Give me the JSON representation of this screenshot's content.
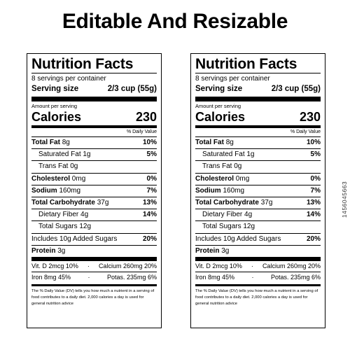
{
  "headline": "Editable And Resizable",
  "labels": [
    {
      "title": "Nutrition Facts",
      "servings": "8 servings per container",
      "serving_size_label": "Serving size",
      "serving_size_value": "2/3 cup (55g)",
      "amount_per_serving": "Amount per serving",
      "calories_label": "Calories",
      "calories_value": "230",
      "daily_value_header": "% Daily Value",
      "rows": [
        {
          "name": "Total Fat",
          "amount": "8g",
          "pct": "10%"
        },
        {
          "name": "Saturated Fat 1g",
          "pct": "5%"
        },
        {
          "name": "Trans Fat 0g",
          "pct": ""
        },
        {
          "name": "Cholesterol",
          "amount": "0mg",
          "pct": "0%"
        },
        {
          "name": "Sodium",
          "amount": "160mg",
          "pct": "7%"
        },
        {
          "name": "Total Carbohydrate",
          "amount": "37g",
          "pct": "13%"
        },
        {
          "name": "Dietary Fiber 4g",
          "pct": "14%"
        },
        {
          "name": "Total Sugars 12g",
          "pct": ""
        },
        {
          "name": "Includes 10g Added Sugars",
          "pct": "20%"
        },
        {
          "name": "Protein",
          "amount": "3g",
          "pct": ""
        }
      ],
      "vitamins": [
        {
          "left": "Vit. D 2mcg 10%",
          "sep": "·",
          "right": "Calcium 260mg 20%"
        },
        {
          "left": "Iron 8mg 45%",
          "sep": "·",
          "right": "Potas. 235mg 6%"
        }
      ],
      "footnote": "The % Daily Value (DV) tells you how much a nutrient in a serving of food contributes to a daily diet. 2,000 calories a day is used for general nutrition advice"
    },
    {
      "title": "Nutrition Facts",
      "servings": "8 servings per container",
      "serving_size_label": "Serving size",
      "serving_size_value": "2/3 cup (55g)",
      "amount_per_serving": "Amount per serving",
      "calories_label": "Calories",
      "calories_value": "230",
      "daily_value_header": "% Daily Value",
      "rows": [
        {
          "name": "Total Fat",
          "amount": "8g",
          "pct": "10%"
        },
        {
          "name": "Saturated Fat 1g",
          "pct": "5%"
        },
        {
          "name": "Trans Fat 0g",
          "pct": ""
        },
        {
          "name": "Cholesterol",
          "amount": "0mg",
          "pct": "0%"
        },
        {
          "name": "Sodium",
          "amount": "160mg",
          "pct": "7%"
        },
        {
          "name": "Total Carbohydrate",
          "amount": "37g",
          "pct": "13%"
        },
        {
          "name": "Dietary Fiber 4g",
          "pct": "14%"
        },
        {
          "name": "Total Sugars 12g",
          "pct": ""
        },
        {
          "name": "Includes 10g Added Sugars",
          "pct": "20%"
        },
        {
          "name": "Protein",
          "amount": "3g",
          "pct": ""
        }
      ],
      "vitamins": [
        {
          "left": "Vit. D 2mcg 10%",
          "sep": "·",
          "right": "Calcium 260mg 20%"
        },
        {
          "left": "Iron 8mg 45%",
          "sep": "·",
          "right": "Potas. 235mg 6%"
        }
      ],
      "footnote": "The % Daily Value (DV) tells you how much a nutrient in a serving of food contributes to a daily diet. 2,000 calories a day is used for general nutrition advice"
    }
  ],
  "stock_id": "1456045663"
}
